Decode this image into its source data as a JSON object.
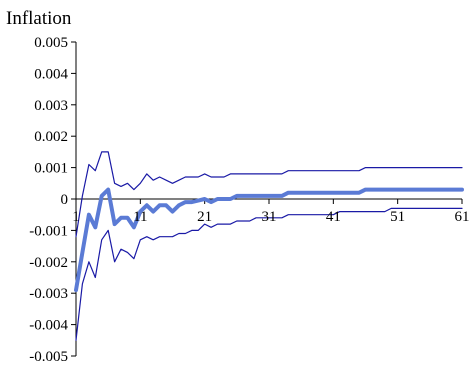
{
  "chart_data": {
    "type": "line",
    "title": "Inflation",
    "xlabel": "",
    "ylabel": "",
    "ylim": [
      -0.005,
      0.005
    ],
    "yticks": [
      "0.005",
      "0.004",
      "0.003",
      "0.002",
      "0.001",
      "0",
      "-0.001",
      "-0.002",
      "-0.003",
      "-0.004",
      "-0.005"
    ],
    "ytick_values": [
      0.005,
      0.004,
      0.003,
      0.002,
      0.001,
      0,
      -0.001,
      -0.002,
      -0.003,
      -0.004,
      -0.005
    ],
    "xticks": [
      "1",
      "11",
      "21",
      "31",
      "41",
      "51",
      "61"
    ],
    "xtick_values": [
      1,
      11,
      21,
      31,
      41,
      51,
      61
    ],
    "xlim": [
      1,
      61
    ],
    "colors": {
      "response": "#5b7bd5",
      "bands": "#1a1aa6",
      "axis": "#000000"
    },
    "series": [
      {
        "role": "response",
        "x": [
          1,
          2,
          3,
          4,
          5,
          6,
          7,
          8,
          9,
          10,
          11,
          12,
          13,
          14,
          15,
          16,
          17,
          18,
          19,
          20,
          21,
          22,
          23,
          24,
          25,
          26,
          27,
          28,
          29,
          30,
          31,
          32,
          33,
          34,
          35,
          36,
          37,
          38,
          39,
          40,
          41,
          42,
          43,
          44,
          45,
          46,
          47,
          48,
          49,
          50,
          51,
          52,
          53,
          54,
          55,
          56,
          57,
          58,
          59,
          60,
          61
        ],
        "values": [
          -0.0029,
          -0.0017,
          -0.0005,
          -0.0009,
          0.0001,
          0.0003,
          -0.0008,
          -0.0006,
          -0.0006,
          -0.0009,
          -0.0004,
          -0.0002,
          -0.0004,
          -0.0002,
          -0.0002,
          -0.0004,
          -0.0002,
          -0.0001,
          -0.0001,
          -5e-05,
          0.0,
          -0.0001,
          0.0,
          0.0,
          0.0,
          0.0001,
          0.0001,
          0.0001,
          0.0001,
          0.0001,
          0.0001,
          0.0001,
          0.0001,
          0.0002,
          0.0002,
          0.0002,
          0.0002,
          0.0002,
          0.0002,
          0.0002,
          0.0002,
          0.0002,
          0.0002,
          0.0002,
          0.0002,
          0.0003,
          0.0003,
          0.0003,
          0.0003,
          0.0003,
          0.0003,
          0.0003,
          0.0003,
          0.0003,
          0.0003,
          0.0003,
          0.0003,
          0.0003,
          0.0003,
          0.0003,
          0.0003
        ]
      },
      {
        "role": "upper-band",
        "x": [
          1,
          2,
          3,
          4,
          5,
          6,
          7,
          8,
          9,
          10,
          11,
          12,
          13,
          14,
          15,
          16,
          17,
          18,
          19,
          20,
          21,
          22,
          23,
          24,
          25,
          26,
          27,
          28,
          29,
          30,
          31,
          32,
          33,
          34,
          35,
          36,
          37,
          38,
          39,
          40,
          41,
          42,
          43,
          44,
          45,
          46,
          47,
          48,
          49,
          50,
          51,
          52,
          53,
          54,
          55,
          56,
          57,
          58,
          59,
          60,
          61
        ],
        "values": [
          -0.0012,
          0.0001,
          0.0011,
          0.0009,
          0.0015,
          0.0015,
          0.0005,
          0.0004,
          0.0005,
          0.0003,
          0.0005,
          0.0008,
          0.0006,
          0.0007,
          0.0006,
          0.0005,
          0.0006,
          0.0007,
          0.0007,
          0.0007,
          0.0008,
          0.0007,
          0.0007,
          0.0007,
          0.0008,
          0.0008,
          0.0008,
          0.0008,
          0.0008,
          0.0008,
          0.0008,
          0.0008,
          0.0008,
          0.0009,
          0.0009,
          0.0009,
          0.0009,
          0.0009,
          0.0009,
          0.0009,
          0.0009,
          0.0009,
          0.0009,
          0.0009,
          0.0009,
          0.001,
          0.001,
          0.001,
          0.001,
          0.001,
          0.001,
          0.001,
          0.001,
          0.001,
          0.001,
          0.001,
          0.001,
          0.001,
          0.001,
          0.001,
          0.001
        ]
      },
      {
        "role": "lower-band",
        "x": [
          1,
          2,
          3,
          4,
          5,
          6,
          7,
          8,
          9,
          10,
          11,
          12,
          13,
          14,
          15,
          16,
          17,
          18,
          19,
          20,
          21,
          22,
          23,
          24,
          25,
          26,
          27,
          28,
          29,
          30,
          31,
          32,
          33,
          34,
          35,
          36,
          37,
          38,
          39,
          40,
          41,
          42,
          43,
          44,
          45,
          46,
          47,
          48,
          49,
          50,
          51,
          52,
          53,
          54,
          55,
          56,
          57,
          58,
          59,
          60,
          61
        ],
        "values": [
          -0.0045,
          -0.0027,
          -0.002,
          -0.0025,
          -0.0013,
          -0.001,
          -0.002,
          -0.0016,
          -0.0017,
          -0.0019,
          -0.0013,
          -0.0012,
          -0.0013,
          -0.0012,
          -0.0012,
          -0.0012,
          -0.0011,
          -0.0011,
          -0.001,
          -0.001,
          -0.0008,
          -0.0009,
          -0.0008,
          -0.0008,
          -0.0008,
          -0.0007,
          -0.0007,
          -0.0007,
          -0.0006,
          -0.0006,
          -0.0006,
          -0.0006,
          -0.0006,
          -0.0005,
          -0.0005,
          -0.0005,
          -0.0005,
          -0.0005,
          -0.0005,
          -0.0005,
          -0.0005,
          -0.0004,
          -0.0004,
          -0.0004,
          -0.0004,
          -0.0004,
          -0.0004,
          -0.0004,
          -0.0004,
          -0.0003,
          -0.0003,
          -0.0003,
          -0.0003,
          -0.0003,
          -0.0003,
          -0.0003,
          -0.0003,
          -0.0003,
          -0.0003,
          -0.0003,
          -0.0003
        ]
      }
    ],
    "grid": false,
    "legend": "none"
  }
}
